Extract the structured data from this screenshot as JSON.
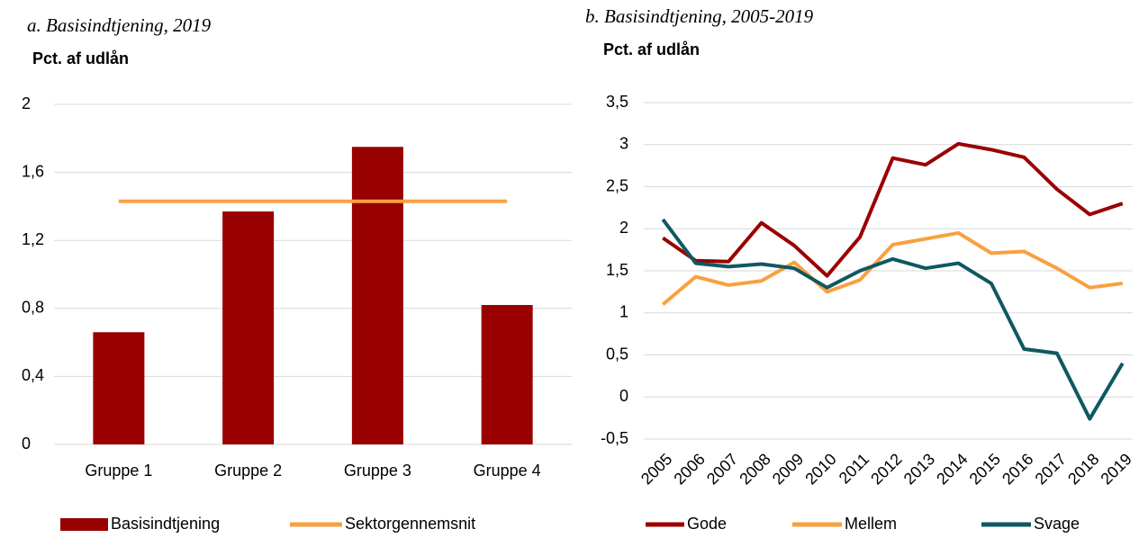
{
  "chart_data": [
    {
      "type": "bar",
      "title": "a. Basisindtjening, 2019",
      "y_label": "Pct. af udlån",
      "categories": [
        "Gruppe 1",
        "Gruppe 2",
        "Gruppe 3",
        "Gruppe 4"
      ],
      "series": [
        {
          "name": "Basisindtjening",
          "color": "#990000",
          "type": "bar",
          "values": [
            0.66,
            1.37,
            1.75,
            0.82
          ]
        },
        {
          "name": "Sektorgennemsnit",
          "color": "#f8a044",
          "type": "line",
          "values": [
            1.43,
            1.43,
            1.43,
            1.43
          ]
        }
      ],
      "ylim": [
        0,
        2
      ],
      "yticks": [
        0,
        {
          "value": 0.4,
          "label": "0,4"
        },
        {
          "value": 0.8,
          "label": "0,8"
        },
        {
          "value": 1.2,
          "label": "1,2"
        },
        {
          "value": 1.6,
          "label": "1,6"
        },
        2
      ],
      "grid": true
    },
    {
      "type": "line",
      "title": "b. Basisindtjening, 2005-2019",
      "y_label": "Pct. af udlån",
      "categories": [
        "2005",
        "2006",
        "2007",
        "2008",
        "2009",
        "2010",
        "2011",
        "2012",
        "2013",
        "2014",
        "2015",
        "2016",
        "2017",
        "2018",
        "2019"
      ],
      "series": [
        {
          "name": "Gode",
          "color": "#9b0000",
          "type": "line",
          "values": [
            1.89,
            1.62,
            1.61,
            2.07,
            1.8,
            1.44,
            1.9,
            2.84,
            2.76,
            3.01,
            2.94,
            2.85,
            2.47,
            2.17,
            2.3
          ]
        },
        {
          "name": "Mellem",
          "color": "#f9a03f",
          "type": "line",
          "values": [
            1.1,
            1.43,
            1.33,
            1.38,
            1.6,
            1.25,
            1.39,
            1.81,
            1.88,
            1.95,
            1.71,
            1.73,
            1.53,
            1.3,
            1.35
          ]
        },
        {
          "name": "Svage",
          "color": "#0f5860",
          "type": "line",
          "values": [
            2.11,
            1.59,
            1.55,
            1.58,
            1.53,
            1.3,
            1.5,
            1.64,
            1.53,
            1.59,
            1.35,
            0.57,
            0.52,
            -0.26,
            0.4
          ]
        }
      ],
      "ylim": [
        -0.5,
        3.5
      ],
      "yticks": [
        {
          "value": -0.5,
          "label": "-0,5"
        },
        0,
        {
          "value": 0.5,
          "label": "0,5"
        },
        1,
        {
          "value": 1.5,
          "label": "1,5"
        },
        2,
        {
          "value": 2.5,
          "label": "2,5"
        },
        3,
        {
          "value": 3.5,
          "label": "3,5"
        }
      ],
      "grid": true
    }
  ]
}
